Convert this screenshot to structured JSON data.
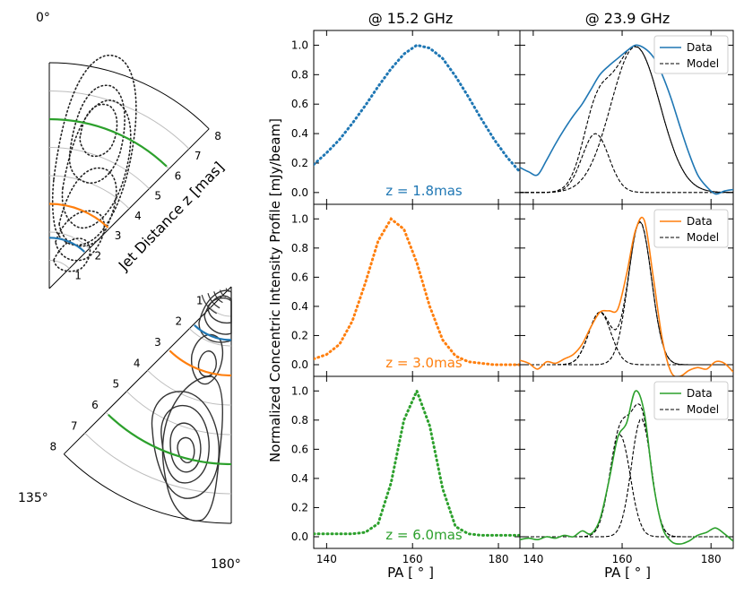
{
  "colors": {
    "blue": "#1f77b4",
    "orange": "#ff7f0e",
    "green": "#2ca02c",
    "grid": "#bdbdbd",
    "model": "#000000"
  },
  "polar_top": {
    "angle_label_0": "0°",
    "radial_label": "Jet Distance z [mas]",
    "ticks": [
      "1",
      "2",
      "3",
      "4",
      "5",
      "6",
      "7",
      "8"
    ],
    "markers": [
      {
        "z": 1.8,
        "color": "#1f77b4"
      },
      {
        "z": 3.0,
        "color": "#ff7f0e"
      },
      {
        "z": 6.0,
        "color": "#2ca02c"
      }
    ]
  },
  "polar_bottom": {
    "angle_label_135": "135°",
    "angle_label_180": "180°",
    "ticks": [
      "1",
      "2",
      "3",
      "4",
      "5",
      "6",
      "7",
      "8"
    ],
    "markers": [
      {
        "z": 1.8,
        "color": "#1f77b4"
      },
      {
        "z": 3.0,
        "color": "#ff7f0e"
      },
      {
        "z": 6.0,
        "color": "#2ca02c"
      }
    ]
  },
  "chart_data": {
    "type": "line",
    "column_titles": [
      "@ 15.2 GHz",
      "@ 23.9 GHz"
    ],
    "xlabel": "PA [ ° ]",
    "ylabel": "Normalized Concentric Intensity Profile [mJy/beam]",
    "xlim": [
      137,
      185
    ],
    "ylim": [
      -0.08,
      1.1
    ],
    "xticks": [
      "140",
      "160",
      "180"
    ],
    "yticks": [
      "0.0",
      "0.2",
      "0.4",
      "0.6",
      "0.8",
      "1.0"
    ],
    "legend": {
      "data": "Data",
      "model": "Model",
      "position": "top-right"
    },
    "rows": [
      {
        "label": "z = 1.8mas",
        "color": "#1f77b4",
        "left_series": {
          "x": [
            137,
            140,
            143,
            146,
            149,
            152,
            155,
            158,
            161,
            164,
            167,
            170,
            173,
            176,
            179,
            182,
            185
          ],
          "y": [
            0.19,
            0.27,
            0.36,
            0.47,
            0.59,
            0.72,
            0.84,
            0.94,
            1.0,
            0.98,
            0.91,
            0.79,
            0.65,
            0.5,
            0.36,
            0.24,
            0.14
          ]
        },
        "right_series": {
          "x": [
            137,
            139,
            141,
            143,
            145,
            147,
            149,
            151,
            153,
            155,
            157,
            159,
            161,
            163,
            165,
            167,
            169,
            171,
            173,
            175,
            177,
            179,
            181,
            183,
            185
          ],
          "y": [
            0.17,
            0.14,
            0.12,
            0.22,
            0.33,
            0.43,
            0.52,
            0.6,
            0.7,
            0.8,
            0.86,
            0.91,
            0.96,
            1.0,
            0.98,
            0.92,
            0.8,
            0.64,
            0.45,
            0.27,
            0.12,
            0.04,
            -0.01,
            0.01,
            0.02
          ]
        },
        "model_components": [
          {
            "mu": 154,
            "sigma": 3,
            "amp": 0.4
          },
          {
            "mu": 163,
            "sigma": 5.5,
            "amp": 0.99
          }
        ]
      },
      {
        "label": "z = 3.0mas",
        "color": "#ff7f0e",
        "left_series": {
          "x": [
            137,
            140,
            143,
            146,
            149,
            152,
            155,
            158,
            161,
            164,
            167,
            170,
            173,
            176,
            179,
            182,
            185
          ],
          "y": [
            0.04,
            0.07,
            0.14,
            0.3,
            0.56,
            0.85,
            1.0,
            0.93,
            0.7,
            0.4,
            0.17,
            0.06,
            0.02,
            0.01,
            0.0,
            0.0,
            0.0
          ]
        },
        "right_series": {
          "x": [
            137,
            139,
            141,
            143,
            145,
            147,
            149,
            151,
            153,
            155,
            157,
            159,
            161,
            163,
            165,
            167,
            169,
            171,
            173,
            175,
            177,
            179,
            181,
            183,
            185
          ],
          "y": [
            0.03,
            0.01,
            -0.03,
            0.02,
            0.01,
            0.04,
            0.07,
            0.14,
            0.26,
            0.36,
            0.37,
            0.38,
            0.62,
            0.92,
            0.99,
            0.6,
            0.18,
            -0.05,
            -0.08,
            -0.04,
            -0.02,
            -0.03,
            0.02,
            0.01,
            -0.05
          ]
        },
        "model_components": [
          {
            "mu": 155,
            "sigma": 2.5,
            "amp": 0.36
          },
          {
            "mu": 164,
            "sigma": 2.6,
            "amp": 0.98
          }
        ]
      },
      {
        "label": "z = 6.0mas",
        "color": "#2ca02c",
        "left_series": {
          "x": [
            137,
            140,
            143,
            146,
            149,
            152,
            155,
            158,
            161,
            164,
            167,
            170,
            173,
            176,
            179,
            182,
            185
          ],
          "y": [
            0.02,
            0.02,
            0.02,
            0.02,
            0.03,
            0.09,
            0.37,
            0.8,
            1.0,
            0.76,
            0.33,
            0.07,
            0.02,
            0.01,
            0.01,
            0.01,
            0.01
          ]
        },
        "right_series": {
          "x": [
            137,
            139,
            141,
            143,
            145,
            147,
            149,
            151,
            153,
            155,
            157,
            159,
            161,
            163,
            165,
            167,
            169,
            171,
            173,
            175,
            177,
            179,
            181,
            183,
            185
          ],
          "y": [
            -0.02,
            -0.01,
            -0.02,
            0.0,
            -0.01,
            0.01,
            0.0,
            0.04,
            0.02,
            0.12,
            0.38,
            0.68,
            0.78,
            1.0,
            0.85,
            0.37,
            0.07,
            -0.03,
            -0.05,
            -0.03,
            0.01,
            0.03,
            0.06,
            0.02,
            -0.03
          ]
        },
        "model_components": [
          {
            "mu": 159.5,
            "sigma": 2.3,
            "amp": 0.7
          },
          {
            "mu": 164.3,
            "sigma": 2.2,
            "amp": 0.81
          }
        ]
      }
    ]
  }
}
